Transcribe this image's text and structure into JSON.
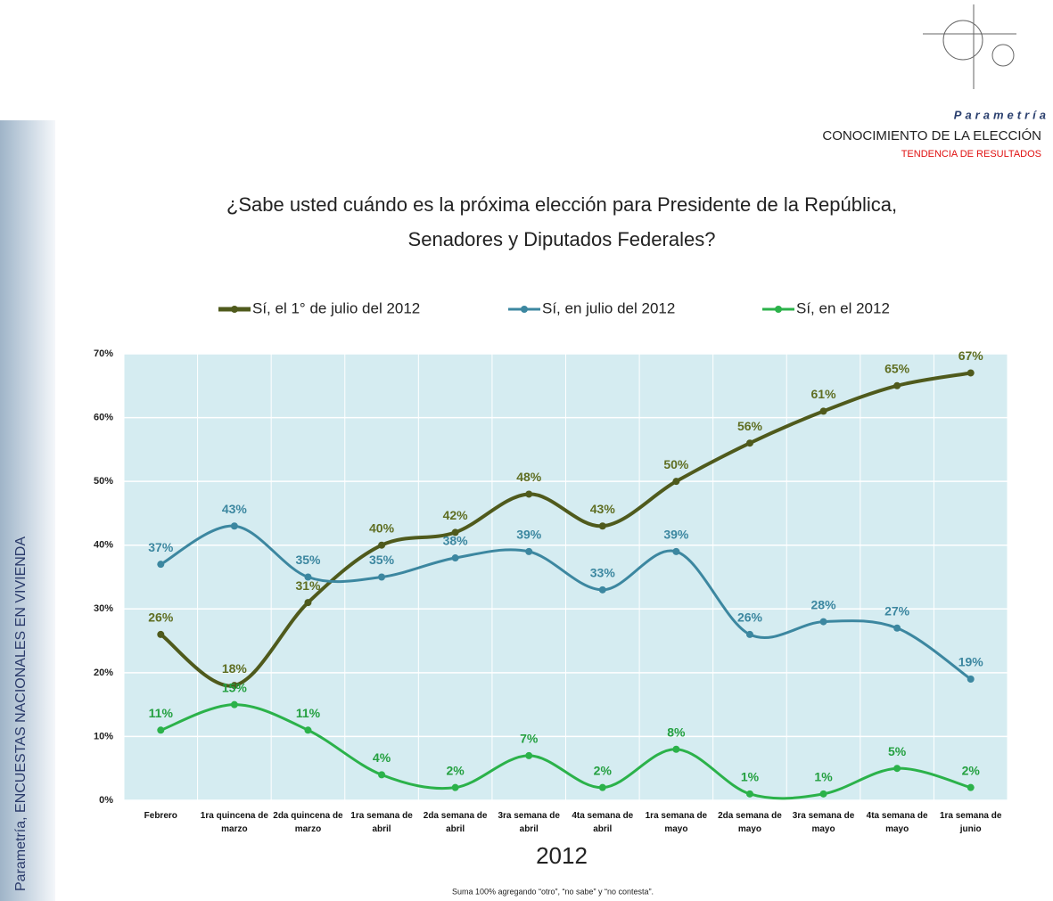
{
  "brand": "Parametría",
  "header": {
    "title": "CONOCIMIENTO DE LA ELECCIÓN",
    "subtitle": "TENDENCIA DE RESULTADOS"
  },
  "side_text": "Parametría, ENCUESTAS NACIONALES EN VIVIENDA",
  "footnote": "Suma 100% agregando “otro”, “no sabe” y “no contesta”.",
  "chart_data": {
    "type": "line",
    "title": [
      "¿Sabe usted cuándo es la próxima elección para Presidente de la República,",
      "Senadores y Diputados Federales?"
    ],
    "x_label": "2012",
    "categories": [
      "Febrero",
      "1ra quincena de marzo",
      "2da quincena de marzo",
      "1ra semana de abril",
      "2da semana de abril",
      "3ra semana de abril",
      "4ta semana de abril",
      "1ra semana de mayo",
      "2da semana de mayo",
      "3ra semana de mayo",
      "4ta semana de mayo",
      "1ra semana de junio"
    ],
    "series": [
      {
        "name": "Sí, el 1° de julio del 2012",
        "color": "#4f5a1c",
        "label_color": "#5f6e22",
        "values": [
          26,
          18,
          31,
          40,
          42,
          48,
          43,
          50,
          56,
          61,
          65,
          67
        ],
        "value_labels": [
          "26%",
          "18%",
          "31%",
          "40%",
          "42%",
          "48%",
          "43%",
          "50%",
          "56%",
          "61%",
          "65%",
          "67%"
        ]
      },
      {
        "name": "Sí, en julio del 2012",
        "color": "#3c87a0",
        "label_color": "#3c87a0",
        "values": [
          37,
          43,
          35,
          35,
          38,
          39,
          33,
          39,
          26,
          28,
          27,
          19
        ],
        "value_labels": [
          "37%",
          "43%",
          "35%",
          "35%",
          "38%",
          "39%",
          "33%",
          "39%",
          "26%",
          "28%",
          "27%",
          "19%"
        ]
      },
      {
        "name": "Sí, en el 2012",
        "color": "#2bb24a",
        "label_color": "#24a040",
        "values": [
          11,
          15,
          11,
          4,
          2,
          7,
          2,
          8,
          1,
          1,
          5,
          2
        ],
        "value_labels": [
          "11%",
          "15%",
          "11%",
          "4%",
          "2%",
          "7%",
          "2%",
          "8%",
          "1%",
          "1%",
          "5%",
          "2%"
        ]
      }
    ],
    "ylim": [
      0,
      70
    ],
    "yticks": [
      {
        "value": 0,
        "label": "0%"
      },
      {
        "value": 10,
        "label": "10%"
      },
      {
        "value": 20,
        "label": "20%"
      },
      {
        "value": 30,
        "label": "30%"
      },
      {
        "value": 40,
        "label": "40%"
      },
      {
        "value": 50,
        "label": "50%"
      },
      {
        "value": 60,
        "label": "60%"
      },
      {
        "value": 70,
        "label": "70%"
      }
    ],
    "grid": true,
    "legend": "top"
  }
}
